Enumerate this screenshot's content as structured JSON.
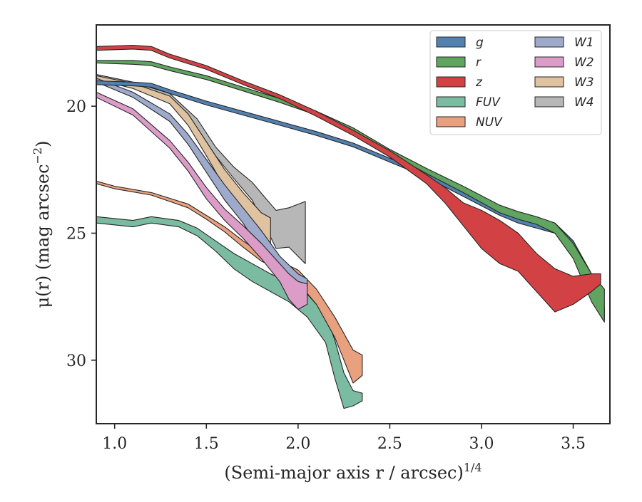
{
  "chart_data": {
    "type": "area",
    "xlabel": "(Semi-major axis r / arcsec)",
    "xlabel_exponent": "1/4",
    "ylabel": "μ(r) (mag arcsec",
    "ylabel_exponent": "−2",
    "ylabel_close": ")",
    "xlim": [
      0.9,
      3.7
    ],
    "ylim": [
      32.5,
      16.8
    ],
    "y_inverted": true,
    "grid": false,
    "legend_position": "top-right",
    "xticks": [
      {
        "value": 1.0,
        "label": "1.0"
      },
      {
        "value": 1.5,
        "label": "1.5"
      },
      {
        "value": 2.0,
        "label": "2.0"
      },
      {
        "value": 2.5,
        "label": "2.5"
      },
      {
        "value": 3.0,
        "label": "3.0"
      },
      {
        "value": 3.5,
        "label": "3.5"
      }
    ],
    "yticks": [
      {
        "value": 20,
        "label": "20"
      },
      {
        "value": 25,
        "label": "25"
      },
      {
        "value": 30,
        "label": "30"
      }
    ],
    "series": [
      {
        "name": "FUV",
        "color": "#7bbba2",
        "x": [
          0.9,
          1.1,
          1.2,
          1.35,
          1.45,
          1.55,
          1.65,
          1.75,
          1.85,
          1.95,
          2.05,
          2.15,
          2.2,
          2.25,
          2.3,
          2.35
        ],
        "y_upper": [
          24.35,
          24.5,
          24.35,
          24.5,
          24.8,
          25.3,
          25.8,
          26.2,
          26.6,
          26.95,
          27.4,
          28.2,
          29.2,
          30.5,
          31.2,
          31.3
        ],
        "y_lower": [
          24.6,
          24.75,
          24.6,
          24.75,
          25.1,
          25.7,
          26.4,
          26.9,
          27.3,
          27.7,
          28.3,
          29.3,
          30.7,
          31.9,
          31.8,
          31.6
        ]
      },
      {
        "name": "NUV",
        "color": "#e9a07f",
        "x": [
          0.9,
          1.0,
          1.2,
          1.4,
          1.5,
          1.6,
          1.7,
          1.8,
          1.9,
          2.0,
          2.1,
          2.2,
          2.3,
          2.35
        ],
        "y_upper": [
          22.95,
          23.15,
          23.4,
          23.85,
          24.3,
          24.75,
          25.3,
          25.8,
          26.1,
          26.45,
          27.2,
          28.3,
          29.6,
          29.8
        ],
        "y_lower": [
          23.05,
          23.25,
          23.5,
          24.0,
          24.45,
          24.95,
          25.55,
          26.1,
          26.45,
          26.95,
          27.8,
          29.1,
          30.9,
          30.6
        ]
      },
      {
        "name": "W4",
        "color": "#b7b7b7",
        "x": [
          0.9,
          1.1,
          1.3,
          1.45,
          1.55,
          1.65,
          1.75,
          1.82,
          1.88,
          1.95,
          2.04
        ],
        "y_upper": [
          18.75,
          19.05,
          19.5,
          20.5,
          21.6,
          22.4,
          23.0,
          23.6,
          24.1,
          24.0,
          23.75
        ],
        "y_lower": [
          18.9,
          19.25,
          19.8,
          20.85,
          21.95,
          22.85,
          23.7,
          24.7,
          25.6,
          25.55,
          26.2
        ]
      },
      {
        "name": "W3",
        "color": "#dfc2a0",
        "x": [
          0.9,
          1.1,
          1.3,
          1.4,
          1.5,
          1.6,
          1.7,
          1.8,
          1.85
        ],
        "y_upper": [
          18.8,
          19.1,
          19.6,
          20.3,
          21.4,
          22.5,
          23.4,
          24.2,
          24.4
        ],
        "y_lower": [
          18.95,
          19.3,
          19.9,
          20.75,
          21.95,
          23.2,
          24.3,
          25.2,
          25.6
        ]
      },
      {
        "name": "W1",
        "color": "#9eaacb",
        "x": [
          0.9,
          1.1,
          1.3,
          1.4,
          1.5,
          1.6,
          1.7,
          1.8,
          1.9,
          2.0,
          2.05
        ],
        "y_upper": [
          18.9,
          19.45,
          20.3,
          21.1,
          22.1,
          23.1,
          24.0,
          24.9,
          25.9,
          26.6,
          26.8
        ],
        "y_lower": [
          19.05,
          19.65,
          20.6,
          21.5,
          22.6,
          23.7,
          24.6,
          25.7,
          26.9,
          27.3,
          27.1
        ]
      },
      {
        "name": "W2",
        "color": "#dc9cc8",
        "x": [
          0.9,
          1.1,
          1.3,
          1.4,
          1.5,
          1.6,
          1.7,
          1.8,
          1.9,
          1.95,
          2.0,
          2.05
        ],
        "y_upper": [
          19.45,
          20.1,
          21.35,
          22.2,
          23.2,
          24.05,
          24.7,
          25.4,
          26.2,
          26.6,
          26.9,
          27.0
        ],
        "y_lower": [
          19.65,
          20.35,
          21.65,
          22.55,
          23.65,
          24.5,
          25.2,
          26.0,
          26.9,
          27.6,
          28.0,
          27.8
        ]
      },
      {
        "name": "g",
        "color": "#5281b0",
        "x": [
          0.9,
          1.1,
          1.2,
          1.3,
          1.5,
          1.7,
          1.9,
          2.1,
          2.3,
          2.5,
          2.7,
          2.9,
          3.1,
          3.2,
          3.3,
          3.4,
          3.5,
          3.6,
          3.67
        ],
        "y_upper": [
          19.0,
          19.05,
          19.1,
          19.35,
          19.8,
          20.2,
          20.6,
          21.0,
          21.45,
          22.05,
          22.6,
          23.3,
          24.0,
          24.3,
          24.5,
          24.6,
          25.3,
          26.6,
          27.9
        ],
        "y_lower": [
          19.15,
          19.2,
          19.25,
          19.5,
          19.95,
          20.35,
          20.75,
          21.15,
          21.6,
          22.2,
          22.8,
          23.55,
          24.3,
          24.6,
          24.8,
          25.0,
          25.8,
          27.4,
          28.4
        ]
      },
      {
        "name": "r",
        "color": "#5fa45f",
        "x": [
          0.9,
          1.1,
          1.2,
          1.3,
          1.5,
          1.7,
          1.9,
          2.1,
          2.3,
          2.5,
          2.7,
          2.9,
          3.1,
          3.2,
          3.3,
          3.4,
          3.5,
          3.6,
          3.67
        ],
        "y_upper": [
          18.2,
          18.2,
          18.25,
          18.45,
          18.8,
          19.25,
          19.7,
          20.2,
          20.85,
          21.7,
          22.45,
          23.15,
          23.9,
          24.15,
          24.35,
          24.6,
          25.4,
          26.6,
          27.2
        ],
        "y_lower": [
          18.3,
          18.35,
          18.4,
          18.6,
          18.95,
          19.4,
          19.85,
          20.35,
          21.0,
          21.85,
          22.65,
          23.4,
          24.2,
          24.45,
          24.65,
          25.0,
          26.0,
          27.7,
          28.5
        ]
      },
      {
        "name": "z",
        "color": "#d24144",
        "x": [
          0.9,
          1.1,
          1.2,
          1.3,
          1.5,
          1.7,
          1.9,
          2.1,
          2.3,
          2.5,
          2.7,
          2.8,
          2.9,
          3.0,
          3.1,
          3.2,
          3.3,
          3.4,
          3.5,
          3.6,
          3.65
        ],
        "y_upper": [
          17.65,
          17.6,
          17.65,
          17.95,
          18.4,
          19.0,
          19.55,
          20.2,
          20.95,
          21.75,
          22.7,
          23.2,
          23.8,
          24.1,
          24.5,
          25.0,
          25.8,
          26.4,
          26.7,
          26.6,
          26.6
        ],
        "y_lower": [
          17.8,
          17.75,
          17.8,
          18.1,
          18.55,
          19.15,
          19.7,
          20.4,
          21.15,
          22.0,
          23.05,
          23.8,
          24.7,
          25.6,
          26.2,
          26.5,
          27.3,
          28.1,
          27.8,
          27.3,
          27.0
        ]
      }
    ],
    "legend": {
      "columns": [
        [
          "g",
          "r",
          "z",
          "FUV",
          "NUV"
        ],
        [
          "W1",
          "W2",
          "W3",
          "W4"
        ]
      ]
    }
  }
}
